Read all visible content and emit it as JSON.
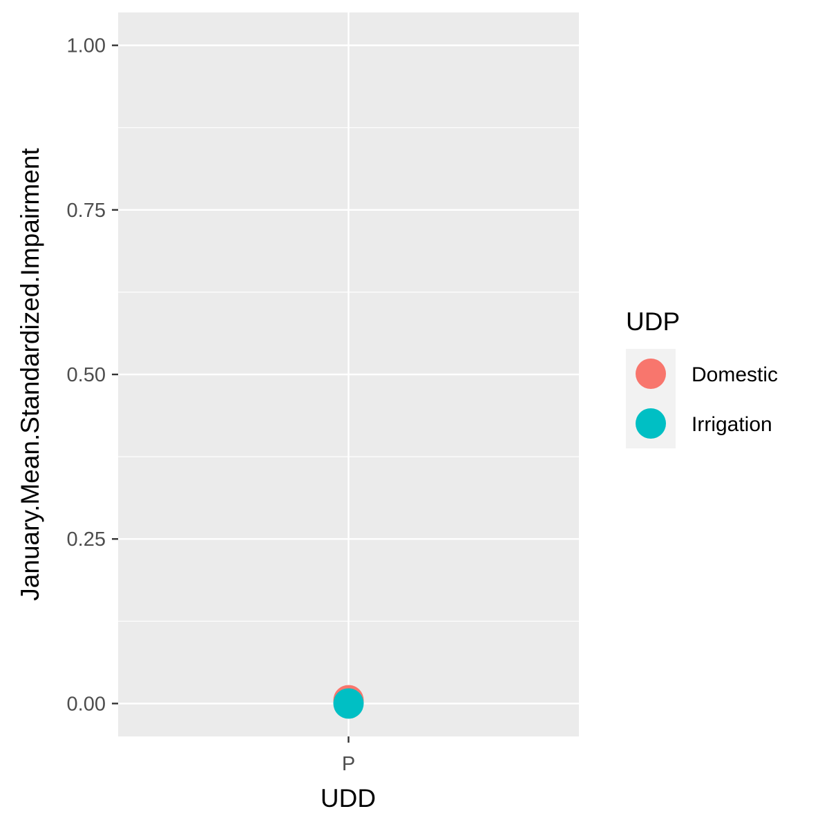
{
  "chart_data": {
    "type": "scatter",
    "title": "",
    "xlabel": "UDD",
    "ylabel": "January.Mean.Standardized.Impairment",
    "categories": [
      "P"
    ],
    "ylim": [
      -0.05,
      1.05
    ],
    "y_ticks": [
      "0.00",
      "0.25",
      "0.50",
      "0.75",
      "1.00"
    ],
    "y_tick_values": [
      0,
      0.25,
      0.5,
      0.75,
      1.0
    ],
    "grid": true,
    "legend": {
      "title": "UDP",
      "placement": "right",
      "entries": [
        "Domestic",
        "Irrigation"
      ]
    },
    "series": [
      {
        "name": "Domestic",
        "color": "#F8766D",
        "points": [
          {
            "x": "P",
            "y": 0.005
          }
        ]
      },
      {
        "name": "Irrigation",
        "color": "#00BFC4",
        "points": [
          {
            "x": "P",
            "y": 0.0
          }
        ]
      }
    ],
    "panel_color": "#EBEBEB",
    "grid_color": "#FFFFFF"
  }
}
